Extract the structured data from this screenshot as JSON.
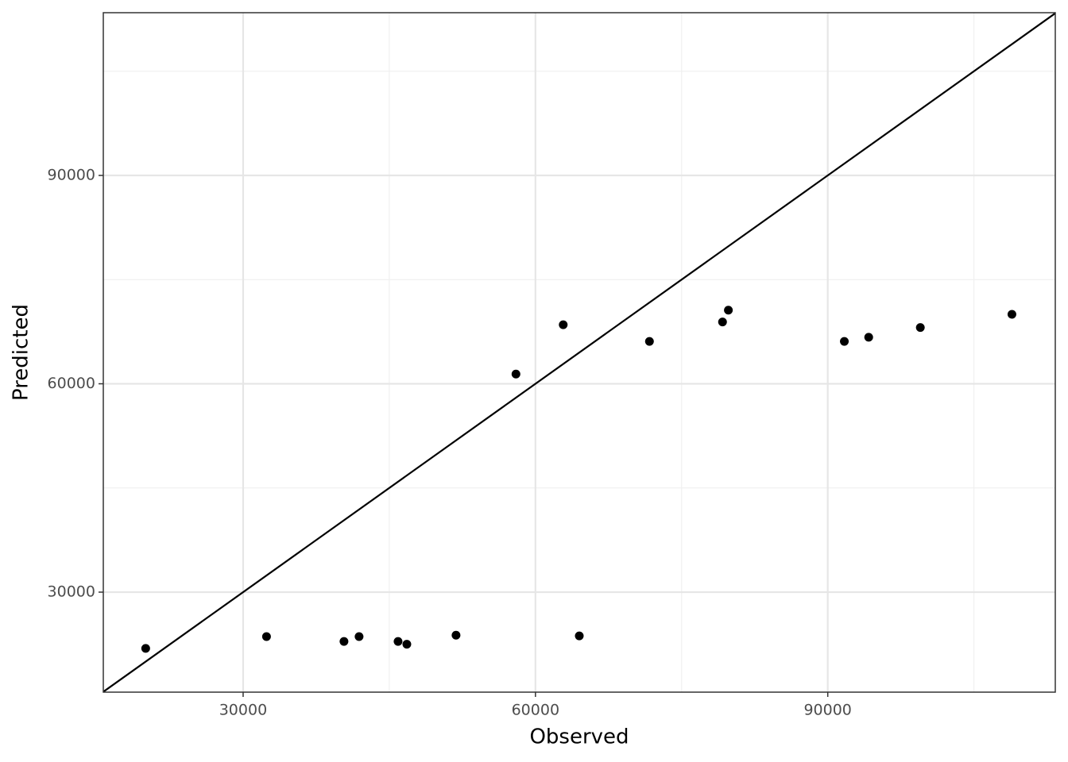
{
  "chart_data": {
    "type": "scatter",
    "x_label": "Observed",
    "y_label": "Predicted",
    "x": [
      20000,
      32400,
      40350,
      41900,
      45900,
      46800,
      51850,
      64500,
      58000,
      62850,
      71700,
      79200,
      79800,
      91700,
      94200,
      99500,
      108900
    ],
    "values": [
      21900,
      23600,
      22900,
      23600,
      22900,
      22500,
      23800,
      23700,
      61400,
      68500,
      66100,
      68900,
      70600,
      66100,
      66700,
      68100,
      70000
    ],
    "color": "#000000",
    "xlim": [
      15650,
      113350
    ],
    "ylim": [
      15600,
      113430
    ],
    "xticks": [
      30000,
      60000,
      90000
    ],
    "yticks": [
      30000,
      60000,
      90000
    ],
    "x_minor_ticks": [
      45000,
      75000,
      105000
    ],
    "y_minor_ticks": [
      45000,
      75000,
      105000
    ],
    "grid": true,
    "identity_line": true
  }
}
